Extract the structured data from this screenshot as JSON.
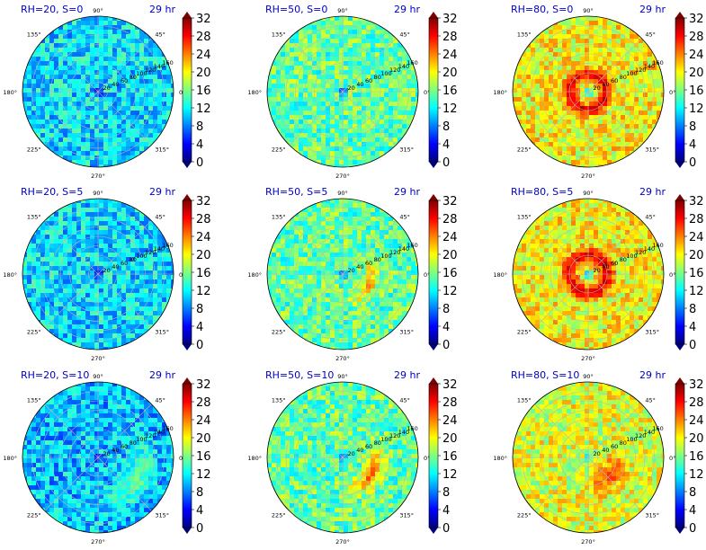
{
  "figure": {
    "colorbar_ticks": [
      "0",
      "4",
      "8",
      "12",
      "16",
      "20",
      "24",
      "28",
      "32"
    ],
    "angle_labels": [
      "0°",
      "45°",
      "90°",
      "135°",
      "180°",
      "225°",
      "270°",
      "315°"
    ],
    "radial_labels": [
      "20",
      "40",
      "60",
      "80",
      "100",
      "120",
      "140",
      "160"
    ],
    "colormap": [
      "#00007f",
      "#0000ff",
      "#007fff",
      "#00ffff",
      "#7fff7f",
      "#ffff00",
      "#ff7f00",
      "#ff0000",
      "#7f0000"
    ]
  },
  "chart_data": [
    {
      "type": "heatmap",
      "title": "RH=20, S=0",
      "time_label": "29 hr",
      "projection": "polar",
      "rh": 20,
      "s": 0,
      "color_range": [
        0,
        32
      ],
      "typical_value": 11,
      "core_value": 1,
      "hot_spots": []
    },
    {
      "type": "heatmap",
      "title": "RH=50, S=0",
      "time_label": "29 hr",
      "projection": "polar",
      "rh": 50,
      "s": 0,
      "color_range": [
        0,
        32
      ],
      "typical_value": 15,
      "core_value": 2,
      "hot_spots": []
    },
    {
      "type": "heatmap",
      "title": "RH=80, S=0",
      "time_label": "29 hr",
      "projection": "polar",
      "rh": 80,
      "s": 0,
      "color_range": [
        0,
        32
      ],
      "typical_value": 20,
      "core_value": 8,
      "hot_spots": [
        {
          "r": 38,
          "value": 31,
          "angle_deg": 0,
          "width": 22
        }
      ]
    },
    {
      "type": "heatmap",
      "title": "RH=20, S=5",
      "time_label": "29 hr",
      "projection": "polar",
      "rh": 20,
      "s": 5,
      "color_range": [
        0,
        32
      ],
      "typical_value": 11,
      "core_value": 2,
      "hot_spots": []
    },
    {
      "type": "heatmap",
      "title": "RH=50, S=5",
      "time_label": "29 hr",
      "projection": "polar",
      "rh": 50,
      "s": 5,
      "color_range": [
        0,
        32
      ],
      "typical_value": 15,
      "core_value": 3,
      "hot_spots": [
        {
          "r": 60,
          "value": 27,
          "angle_deg": 340,
          "width": 20
        }
      ]
    },
    {
      "type": "heatmap",
      "title": "RH=80, S=5",
      "time_label": "29 hr",
      "projection": "polar",
      "rh": 80,
      "s": 5,
      "color_range": [
        0,
        32
      ],
      "typical_value": 20,
      "core_value": 8,
      "hot_spots": [
        {
          "r": 40,
          "value": 31,
          "angle_deg": 0,
          "width": 24
        }
      ]
    },
    {
      "type": "heatmap",
      "title": "RH=20, S=10",
      "time_label": "29 hr",
      "projection": "polar",
      "rh": 20,
      "s": 10,
      "color_range": [
        0,
        32
      ],
      "typical_value": 10,
      "core_value": 3,
      "hot_spots": [
        {
          "r": 95,
          "value": 17,
          "angle_deg": 330,
          "width": 40
        }
      ]
    },
    {
      "type": "heatmap",
      "title": "RH=50, S=10",
      "time_label": "29 hr",
      "projection": "polar",
      "rh": 50,
      "s": 10,
      "color_range": [
        0,
        32
      ],
      "typical_value": 15,
      "core_value": 6,
      "hot_spots": [
        {
          "r": 70,
          "value": 29,
          "angle_deg": 330,
          "width": 30
        }
      ]
    },
    {
      "type": "heatmap",
      "title": "RH=80, S=10",
      "time_label": "29 hr",
      "projection": "polar",
      "rh": 80,
      "s": 10,
      "color_range": [
        0,
        32
      ],
      "typical_value": 19,
      "core_value": 9,
      "hot_spots": [
        {
          "r": 60,
          "value": 28,
          "angle_deg": 320,
          "width": 40
        }
      ]
    }
  ]
}
